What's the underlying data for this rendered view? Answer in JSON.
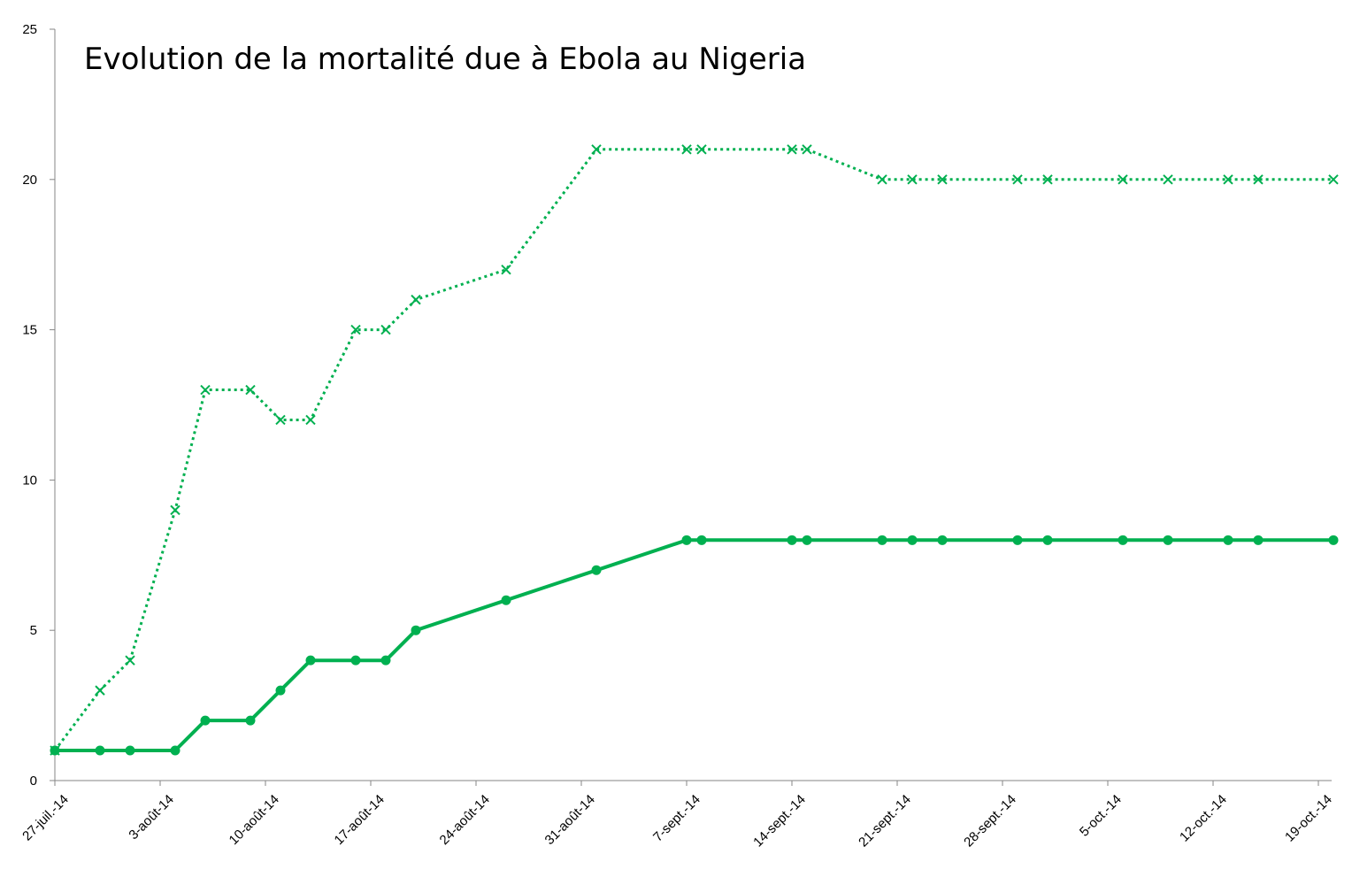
{
  "chart_data": {
    "type": "line",
    "title": "Evolution de la mortalité due à Ebola au Nigeria",
    "xlabel": "",
    "ylabel": "",
    "ylim": [
      0,
      25
    ],
    "yticks": [
      0,
      5,
      10,
      15,
      20,
      25
    ],
    "grid": false,
    "xlim": [
      "2014-07-27",
      "2014-10-19"
    ],
    "xticks": [
      {
        "date": "2014-07-27",
        "label": "27-juil.-14"
      },
      {
        "date": "2014-08-03",
        "label": "3-août-14"
      },
      {
        "date": "2014-08-10",
        "label": "10-août-14"
      },
      {
        "date": "2014-08-17",
        "label": "17-août-14"
      },
      {
        "date": "2014-08-24",
        "label": "24-août-14"
      },
      {
        "date": "2014-08-31",
        "label": "31-août-14"
      },
      {
        "date": "2014-09-07",
        "label": "7-sept.-14"
      },
      {
        "date": "2014-09-14",
        "label": "14-sept.-14"
      },
      {
        "date": "2014-09-21",
        "label": "21-sept.-14"
      },
      {
        "date": "2014-09-28",
        "label": "28-sept.-14"
      },
      {
        "date": "2014-10-05",
        "label": "5-oct.-14"
      },
      {
        "date": "2014-10-12",
        "label": "12-oct.-14"
      },
      {
        "date": "2014-10-19",
        "label": "19-oct.-14"
      }
    ],
    "series": [
      {
        "style": "dotted",
        "marker": "x",
        "color": "#00B050",
        "points": [
          [
            "2014-07-27",
            1
          ],
          [
            "2014-07-30",
            3
          ],
          [
            "2014-08-01",
            4
          ],
          [
            "2014-08-04",
            9
          ],
          [
            "2014-08-06",
            13
          ],
          [
            "2014-08-09",
            13
          ],
          [
            "2014-08-11",
            12
          ],
          [
            "2014-08-13",
            12
          ],
          [
            "2014-08-16",
            15
          ],
          [
            "2014-08-18",
            15
          ],
          [
            "2014-08-20",
            16
          ],
          [
            "2014-08-26",
            17
          ],
          [
            "2014-09-01",
            21
          ],
          [
            "2014-09-07",
            21
          ],
          [
            "2014-09-08",
            21
          ],
          [
            "2014-09-14",
            21
          ],
          [
            "2014-09-15",
            21
          ],
          [
            "2014-09-20",
            20
          ],
          [
            "2014-09-22",
            20
          ],
          [
            "2014-09-24",
            20
          ],
          [
            "2014-09-29",
            20
          ],
          [
            "2014-10-01",
            20
          ],
          [
            "2014-10-06",
            20
          ],
          [
            "2014-10-09",
            20
          ],
          [
            "2014-10-13",
            20
          ],
          [
            "2014-10-15",
            20
          ],
          [
            "2014-10-20",
            20
          ]
        ]
      },
      {
        "style": "solid",
        "marker": "circle",
        "color": "#00B050",
        "points": [
          [
            "2014-07-27",
            1
          ],
          [
            "2014-07-30",
            1
          ],
          [
            "2014-08-01",
            1
          ],
          [
            "2014-08-04",
            1
          ],
          [
            "2014-08-06",
            2
          ],
          [
            "2014-08-09",
            2
          ],
          [
            "2014-08-11",
            3
          ],
          [
            "2014-08-13",
            4
          ],
          [
            "2014-08-16",
            4
          ],
          [
            "2014-08-18",
            4
          ],
          [
            "2014-08-20",
            5
          ],
          [
            "2014-08-26",
            6
          ],
          [
            "2014-09-01",
            7
          ],
          [
            "2014-09-07",
            8
          ],
          [
            "2014-09-08",
            8
          ],
          [
            "2014-09-14",
            8
          ],
          [
            "2014-09-15",
            8
          ],
          [
            "2014-09-20",
            8
          ],
          [
            "2014-09-22",
            8
          ],
          [
            "2014-09-24",
            8
          ],
          [
            "2014-09-29",
            8
          ],
          [
            "2014-10-01",
            8
          ],
          [
            "2014-10-06",
            8
          ],
          [
            "2014-10-09",
            8
          ],
          [
            "2014-10-13",
            8
          ],
          [
            "2014-10-15",
            8
          ],
          [
            "2014-10-20",
            8
          ]
        ]
      }
    ]
  }
}
